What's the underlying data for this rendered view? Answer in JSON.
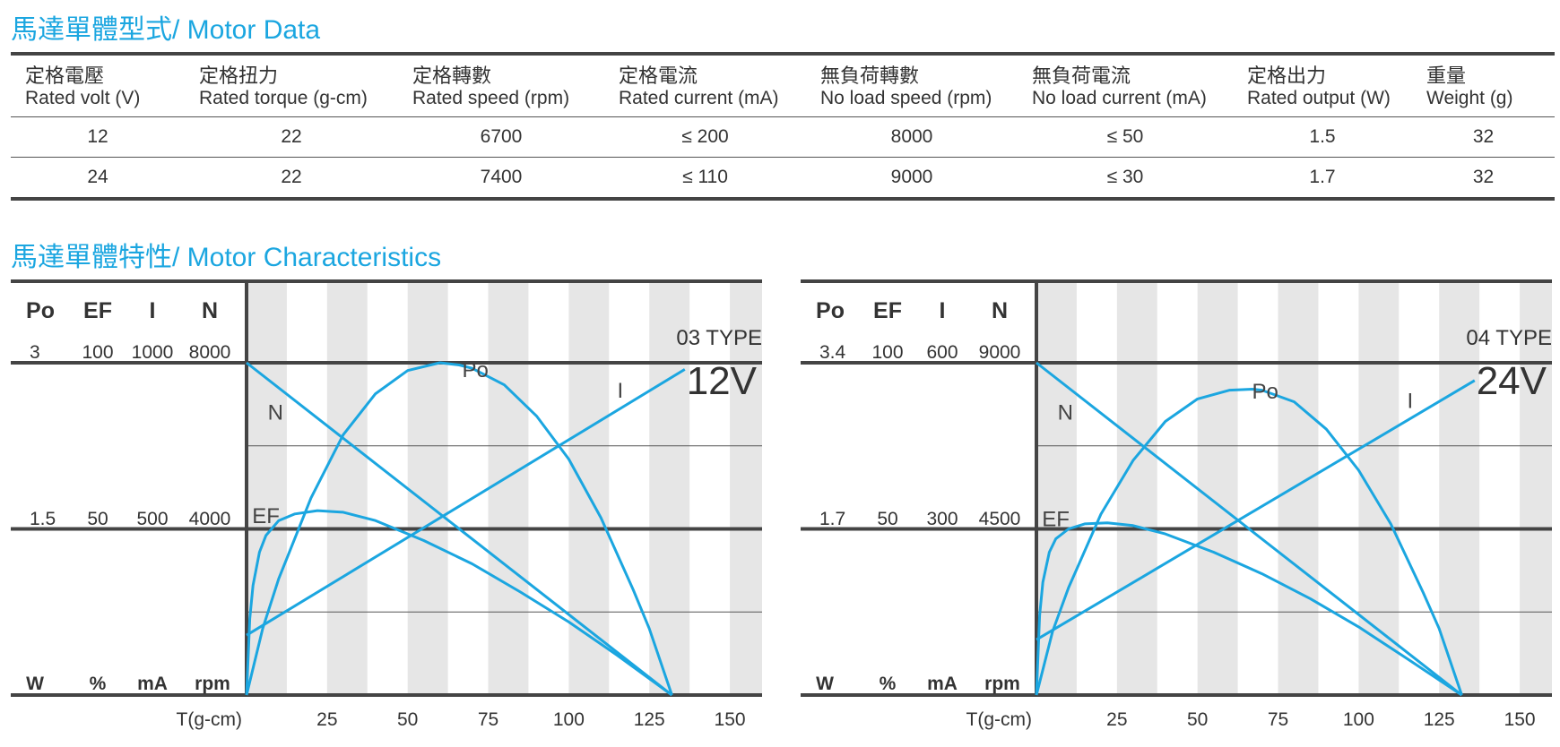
{
  "sections": {
    "motor_data_title": "馬達單體型式/ Motor Data",
    "characteristics_title": "馬達單體特性/ Motor Characteristics"
  },
  "table": {
    "headers": [
      {
        "zh": "定格電壓",
        "en": "Rated volt (V)"
      },
      {
        "zh": "定格扭力",
        "en": "Rated torque (g-cm)"
      },
      {
        "zh": "定格轉數",
        "en": "Rated speed (rpm)"
      },
      {
        "zh": "定格電流",
        "en": "Rated current (mA)"
      },
      {
        "zh": "無負荷轉數",
        "en": "No load speed (rpm)"
      },
      {
        "zh": "無負荷電流",
        "en": "No load current (mA)"
      },
      {
        "zh": "定格出力",
        "en": "Rated output (W)"
      },
      {
        "zh": "重量",
        "en": "Weight (g)"
      }
    ],
    "rows": [
      [
        "12",
        "22",
        "6700",
        "≤ 200",
        "8000",
        "≤ 50",
        "1.5",
        "32"
      ],
      [
        "24",
        "22",
        "7400",
        "≤ 110",
        "9000",
        "≤ 30",
        "1.7",
        "32"
      ]
    ]
  },
  "colors": {
    "accent": "#1ba6e0",
    "curve": "#1ba6e0",
    "axis": "#444444",
    "band": "#e6e6e6"
  },
  "chart_data": [
    {
      "type": "line",
      "type_label": "03 TYPE",
      "voltage_label": "12V",
      "xlabel": "T(g-cm)",
      "x_ticks": [
        25,
        50,
        75,
        100,
        125,
        150
      ],
      "xlim": [
        0,
        160
      ],
      "column_headers": [
        "Po",
        "EF",
        "I",
        "N"
      ],
      "units": [
        "W",
        "%",
        "mA",
        "rpm"
      ],
      "scale_top": [
        "3",
        "100",
        "1000",
        "8000"
      ],
      "scale_mid": [
        "1.5",
        "50",
        "500",
        "4000"
      ],
      "series": [
        {
          "name": "N",
          "x": [
            0,
            132
          ],
          "y": [
            8000,
            0
          ]
        },
        {
          "name": "I",
          "x": [
            0,
            136
          ],
          "y": [
            180,
            980
          ]
        },
        {
          "name": "Po",
          "x": [
            0,
            5,
            10,
            20,
            30,
            40,
            50,
            60,
            66,
            70,
            80,
            90,
            100,
            110,
            120,
            125,
            132
          ],
          "y": [
            0,
            0.6,
            1.05,
            1.78,
            2.35,
            2.72,
            2.93,
            3.0,
            2.98,
            2.95,
            2.8,
            2.52,
            2.13,
            1.6,
            0.95,
            0.6,
            0
          ]
        },
        {
          "name": "EF",
          "x": [
            0,
            1,
            2,
            4,
            6,
            10,
            15,
            22,
            30,
            40,
            55,
            70,
            85,
            100,
            115,
            132
          ],
          "y": [
            0,
            23,
            33,
            43,
            48,
            52.5,
            54.5,
            55.5,
            55,
            52.5,
            46.5,
            39.5,
            31,
            22,
            12,
            0
          ]
        }
      ]
    },
    {
      "type": "line",
      "type_label": "04 TYPE",
      "voltage_label": "24V",
      "xlabel": "T(g-cm)",
      "x_ticks": [
        25,
        50,
        75,
        100,
        125,
        150
      ],
      "xlim": [
        0,
        160
      ],
      "column_headers": [
        "Po",
        "EF",
        "I",
        "N"
      ],
      "units": [
        "W",
        "%",
        "mA",
        "rpm"
      ],
      "scale_top": [
        "3.4",
        "100",
        "600",
        "9000"
      ],
      "scale_mid": [
        "1.7",
        "50",
        "300",
        "4500"
      ],
      "series": [
        {
          "name": "N",
          "x": [
            0,
            132
          ],
          "y": [
            9000,
            0
          ]
        },
        {
          "name": "I",
          "x": [
            0,
            136
          ],
          "y": [
            100,
            568
          ]
        },
        {
          "name": "Po",
          "x": [
            0,
            5,
            10,
            20,
            30,
            40,
            50,
            60,
            67,
            70,
            80,
            90,
            100,
            110,
            120,
            125,
            132
          ],
          "y": [
            0,
            0.65,
            1.1,
            1.85,
            2.4,
            2.8,
            3.03,
            3.12,
            3.13,
            3.12,
            3.0,
            2.72,
            2.3,
            1.75,
            1.05,
            0.68,
            0
          ]
        },
        {
          "name": "EF",
          "x": [
            0,
            1,
            2,
            4,
            6,
            10,
            15,
            22,
            30,
            40,
            55,
            70,
            85,
            100,
            115,
            132
          ],
          "y": [
            0,
            24,
            34,
            43,
            47,
            50,
            51.5,
            51.8,
            51,
            48.5,
            43,
            36.5,
            29,
            20.5,
            11,
            0
          ]
        }
      ]
    }
  ]
}
